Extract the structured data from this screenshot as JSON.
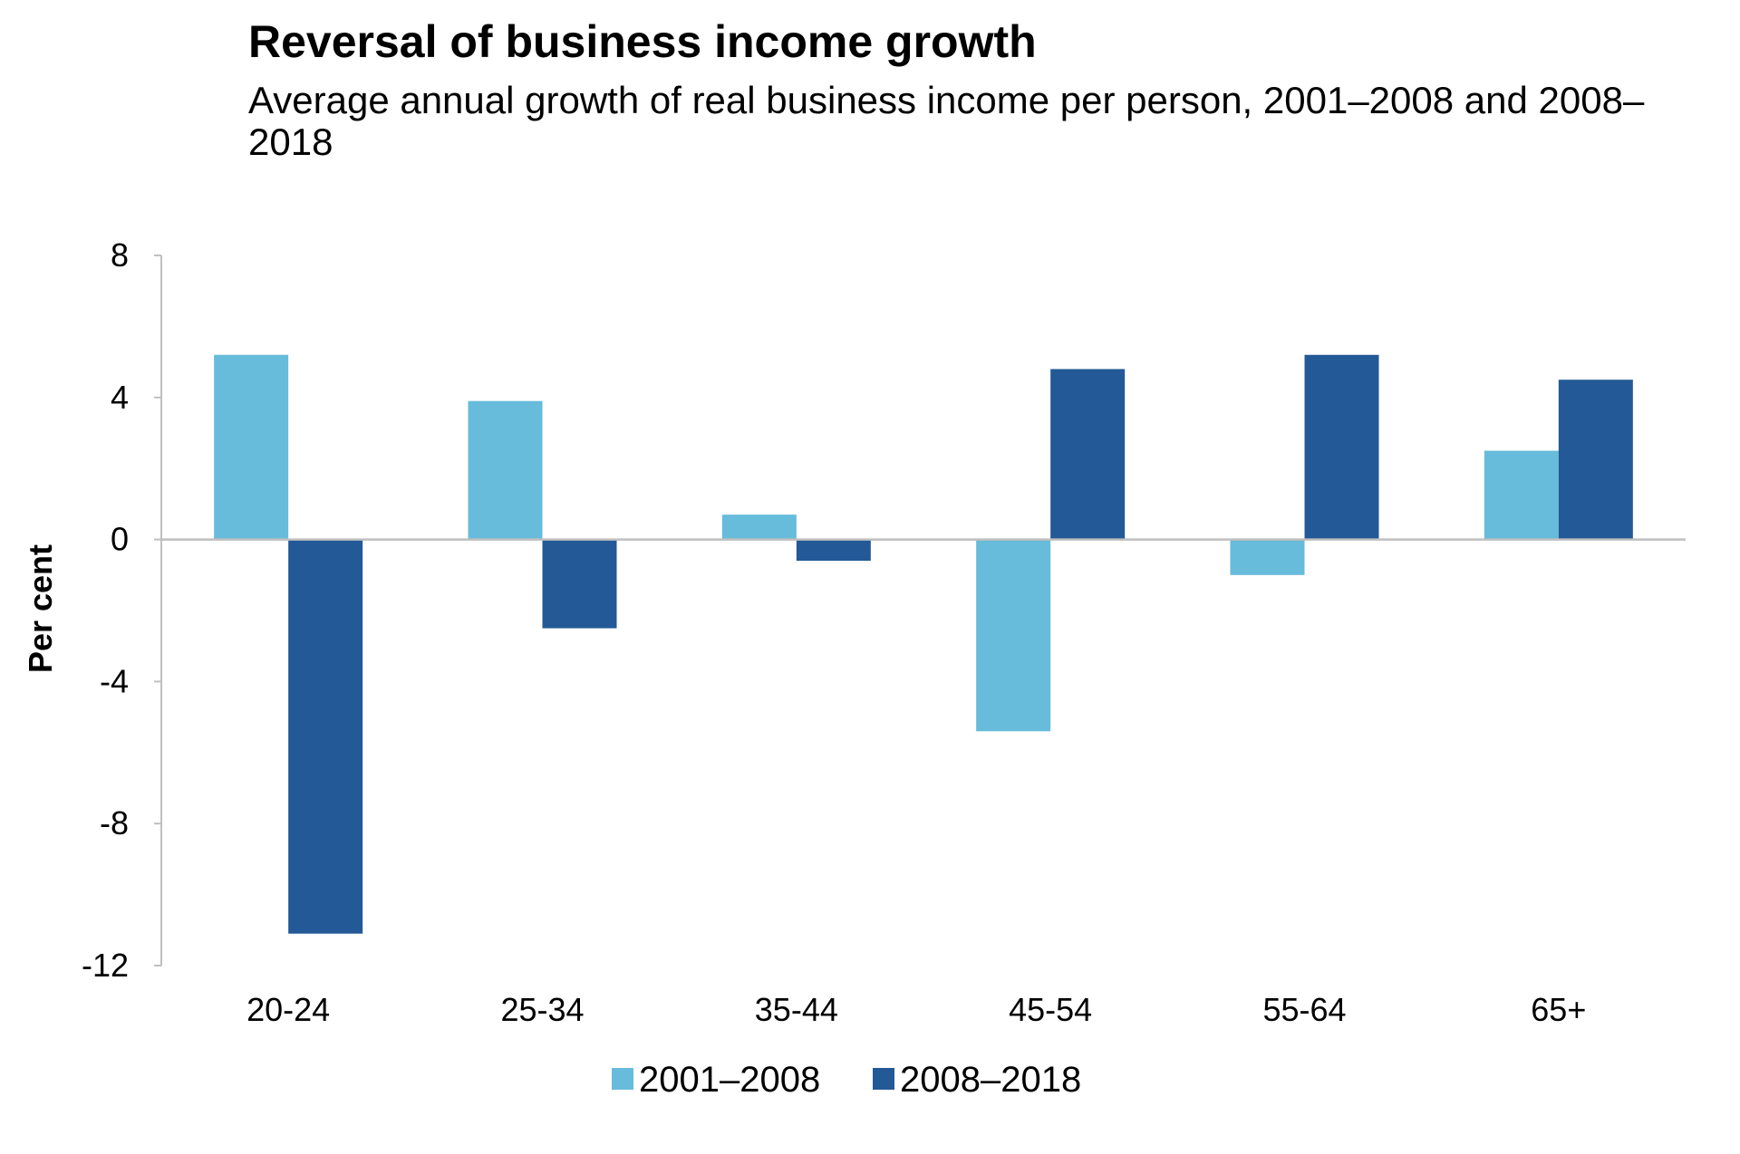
{
  "chart_data": {
    "type": "bar",
    "title": "Reversal of business income growth",
    "subtitle": "Average annual growth of real business income per person, 2001–2008 and 2008–2018",
    "xlabel": "",
    "ylabel": "Per cent",
    "ylim": [
      -12,
      8
    ],
    "yticks": [
      8,
      4,
      0,
      -4,
      -8,
      -12
    ],
    "grid": false,
    "legend_position": "bottom-center",
    "categories": [
      "20-24",
      "25-34",
      "35-44",
      "45-54",
      "55-64",
      "65+"
    ],
    "series": [
      {
        "name": "2001–2008",
        "color": "#67BBDB",
        "values": [
          5.2,
          3.9,
          0.7,
          -5.4,
          -1.0,
          2.5
        ]
      },
      {
        "name": "2008–2018",
        "color": "#235996",
        "values": [
          -11.1,
          -2.5,
          -0.6,
          4.8,
          5.2,
          4.5
        ]
      }
    ],
    "axis_color": "#BFBFBF"
  }
}
